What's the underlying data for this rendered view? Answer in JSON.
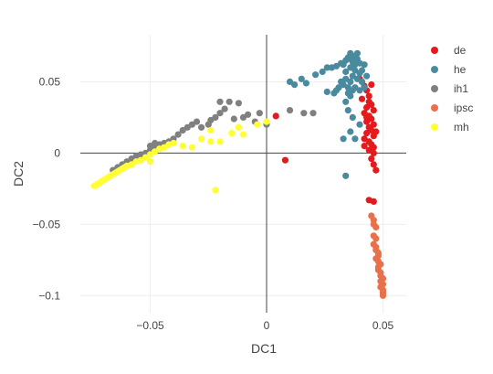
{
  "chart_data": {
    "type": "scatter",
    "xlabel": "DC1",
    "ylabel": "DC2",
    "xlim": [
      -0.08,
      0.06
    ],
    "ylim": [
      -0.112,
      0.083
    ],
    "x_ticks": [
      -0.05,
      0,
      0.05
    ],
    "x_tick_labels": [
      "−0.05",
      "0",
      "0.05"
    ],
    "y_ticks": [
      -0.1,
      -0.05,
      0,
      0.05
    ],
    "y_tick_labels": [
      "−0.1",
      "−0.05",
      "0",
      "0.05"
    ],
    "grid": true,
    "zero_lines": true,
    "legend_position": "top-right",
    "series": [
      {
        "name": "de",
        "color": "#e41a1c",
        "points": [
          [
            0.004,
            0.026
          ],
          [
            0.008,
            -0.005
          ],
          [
            0.04,
            0.052
          ],
          [
            0.042,
            0.047
          ],
          [
            0.043,
            0.044
          ],
          [
            0.044,
            0.04
          ],
          [
            0.041,
            0.038
          ],
          [
            0.044,
            0.036
          ],
          [
            0.045,
            0.034
          ],
          [
            0.043,
            0.032
          ],
          [
            0.046,
            0.03
          ],
          [
            0.042,
            0.028
          ],
          [
            0.044,
            0.026
          ],
          [
            0.045,
            0.024
          ],
          [
            0.043,
            0.022
          ],
          [
            0.046,
            0.02
          ],
          [
            0.044,
            0.018
          ],
          [
            0.045,
            0.016
          ],
          [
            0.043,
            0.014
          ],
          [
            0.046,
            0.012
          ],
          [
            0.042,
            0.01
          ],
          [
            0.044,
            0.008
          ],
          [
            0.045,
            0.006
          ],
          [
            0.046,
            0.004
          ],
          [
            0.044,
            0.002
          ],
          [
            0.046,
            0.0
          ],
          [
            0.045,
            -0.004
          ],
          [
            0.046,
            -0.008
          ],
          [
            0.047,
            -0.012
          ],
          [
            0.044,
            -0.033
          ],
          [
            0.046,
            -0.034
          ],
          [
            0.045,
            0.048
          ],
          [
            0.041,
            0.05
          ],
          [
            0.043,
            0.025
          ],
          [
            0.047,
            0.015
          ],
          [
            0.042,
            0.005
          ]
        ]
      },
      {
        "name": "he",
        "color": "#4a8a9e",
        "points": [
          [
            0.01,
            0.05
          ],
          [
            0.012,
            0.048
          ],
          [
            0.015,
            0.052
          ],
          [
            0.017,
            0.049
          ],
          [
            0.021,
            0.055
          ],
          [
            0.024,
            0.057
          ],
          [
            0.026,
            0.06
          ],
          [
            0.028,
            0.06
          ],
          [
            0.03,
            0.061
          ],
          [
            0.032,
            0.063
          ],
          [
            0.033,
            0.062
          ],
          [
            0.034,
            0.065
          ],
          [
            0.035,
            0.067
          ],
          [
            0.036,
            0.066
          ],
          [
            0.037,
            0.064
          ],
          [
            0.038,
            0.068
          ],
          [
            0.039,
            0.066
          ],
          [
            0.04,
            0.063
          ],
          [
            0.036,
            0.06
          ],
          [
            0.038,
            0.058
          ],
          [
            0.04,
            0.056
          ],
          [
            0.037,
            0.054
          ],
          [
            0.039,
            0.052
          ],
          [
            0.041,
            0.05
          ],
          [
            0.036,
            0.05
          ],
          [
            0.034,
            0.052
          ],
          [
            0.033,
            0.048
          ],
          [
            0.035,
            0.046
          ],
          [
            0.038,
            0.046
          ],
          [
            0.04,
            0.044
          ],
          [
            0.042,
            0.046
          ],
          [
            0.037,
            0.044
          ],
          [
            0.035,
            0.042
          ],
          [
            0.041,
            0.058
          ],
          [
            0.039,
            0.07
          ],
          [
            0.036,
            0.07
          ],
          [
            0.038,
            0.062
          ],
          [
            0.026,
            0.043
          ],
          [
            0.029,
            0.042
          ],
          [
            0.032,
            0.05
          ],
          [
            0.034,
            0.057
          ],
          [
            0.036,
            0.04
          ],
          [
            0.034,
            0.036
          ],
          [
            0.035,
            0.03
          ],
          [
            0.037,
            0.025
          ],
          [
            0.036,
            0.015
          ],
          [
            0.038,
            0.01
          ],
          [
            0.04,
            0.02
          ],
          [
            0.033,
            0.01
          ],
          [
            0.034,
            -0.016
          ],
          [
            0.03,
            0.044
          ],
          [
            0.031,
            0.046
          ],
          [
            0.043,
            0.054
          ],
          [
            0.042,
            0.062
          ]
        ]
      },
      {
        "name": "ih1",
        "color": "#808080",
        "points": [
          [
            -0.066,
            -0.012
          ],
          [
            -0.064,
            -0.01
          ],
          [
            -0.062,
            -0.008
          ],
          [
            -0.06,
            -0.006
          ],
          [
            -0.058,
            -0.004
          ],
          [
            -0.056,
            -0.002
          ],
          [
            -0.054,
            -0.001
          ],
          [
            -0.052,
            0.0
          ],
          [
            -0.05,
            0.002
          ],
          [
            -0.048,
            0.004
          ],
          [
            -0.046,
            0.006
          ],
          [
            -0.044,
            0.007
          ],
          [
            -0.042,
            0.008
          ],
          [
            -0.048,
            0.007
          ],
          [
            -0.05,
            0.005
          ],
          [
            -0.04,
            0.01
          ],
          [
            -0.038,
            0.013
          ],
          [
            -0.036,
            0.016
          ],
          [
            -0.034,
            0.018
          ],
          [
            -0.032,
            0.02
          ],
          [
            -0.03,
            0.022
          ],
          [
            -0.028,
            0.018
          ],
          [
            -0.025,
            0.02
          ],
          [
            -0.022,
            0.025
          ],
          [
            -0.02,
            0.028
          ],
          [
            -0.018,
            0.031
          ],
          [
            -0.016,
            0.036
          ],
          [
            -0.012,
            0.035
          ],
          [
            -0.01,
            0.025
          ],
          [
            -0.005,
            0.022
          ],
          [
            -0.003,
            0.028
          ],
          [
            0.0,
            0.02
          ],
          [
            0.01,
            0.03
          ],
          [
            0.016,
            0.028
          ],
          [
            0.02,
            0.028
          ],
          [
            -0.02,
            0.036
          ],
          [
            -0.008,
            0.027
          ],
          [
            -0.024,
            0.023
          ],
          [
            -0.014,
            0.024
          ]
        ]
      },
      {
        "name": "ipsc",
        "color": "#e8704a",
        "points": [
          [
            0.045,
            -0.044
          ],
          [
            0.046,
            -0.047
          ],
          [
            0.047,
            -0.052
          ],
          [
            0.046,
            -0.058
          ],
          [
            0.047,
            -0.06
          ],
          [
            0.046,
            -0.064
          ],
          [
            0.047,
            -0.066
          ],
          [
            0.048,
            -0.07
          ],
          [
            0.047,
            -0.074
          ],
          [
            0.048,
            -0.076
          ],
          [
            0.049,
            -0.078
          ],
          [
            0.048,
            -0.082
          ],
          [
            0.049,
            -0.084
          ],
          [
            0.05,
            -0.088
          ],
          [
            0.049,
            -0.09
          ],
          [
            0.05,
            -0.092
          ],
          [
            0.049,
            -0.094
          ],
          [
            0.05,
            -0.096
          ],
          [
            0.05,
            -0.098
          ],
          [
            0.05,
            -0.1
          ],
          [
            0.049,
            -0.086
          ],
          [
            0.048,
            -0.08
          ],
          [
            0.047,
            -0.068
          ],
          [
            0.048,
            -0.072
          ],
          [
            0.046,
            -0.05
          ]
        ]
      },
      {
        "name": "mh",
        "color": "#ffff33",
        "points": [
          [
            -0.074,
            -0.023
          ],
          [
            -0.073,
            -0.022
          ],
          [
            -0.072,
            -0.021
          ],
          [
            -0.071,
            -0.02
          ],
          [
            -0.07,
            -0.019
          ],
          [
            -0.069,
            -0.018
          ],
          [
            -0.068,
            -0.017
          ],
          [
            -0.067,
            -0.016
          ],
          [
            -0.066,
            -0.015
          ],
          [
            -0.065,
            -0.014
          ],
          [
            -0.064,
            -0.013
          ],
          [
            -0.063,
            -0.012
          ],
          [
            -0.062,
            -0.011
          ],
          [
            -0.061,
            -0.01
          ],
          [
            -0.06,
            -0.009
          ],
          [
            -0.058,
            -0.008
          ],
          [
            -0.056,
            -0.006
          ],
          [
            -0.054,
            -0.005
          ],
          [
            -0.052,
            -0.003
          ],
          [
            -0.05,
            -0.001
          ],
          [
            -0.048,
            0.001
          ],
          [
            -0.046,
            0.003
          ],
          [
            -0.044,
            0.004
          ],
          [
            -0.042,
            0.006
          ],
          [
            -0.04,
            0.007
          ],
          [
            -0.036,
            0.005
          ],
          [
            -0.032,
            0.004
          ],
          [
            -0.028,
            0.01
          ],
          [
            -0.024,
            0.008
          ],
          [
            -0.022,
            -0.026
          ],
          [
            -0.02,
            0.008
          ],
          [
            -0.015,
            0.014
          ],
          [
            -0.01,
            0.013
          ],
          [
            -0.004,
            0.02
          ],
          [
            0.0,
            0.022
          ],
          [
            -0.05,
            -0.006
          ],
          [
            -0.024,
            0.016
          ],
          [
            -0.012,
            0.018
          ]
        ]
      }
    ]
  }
}
